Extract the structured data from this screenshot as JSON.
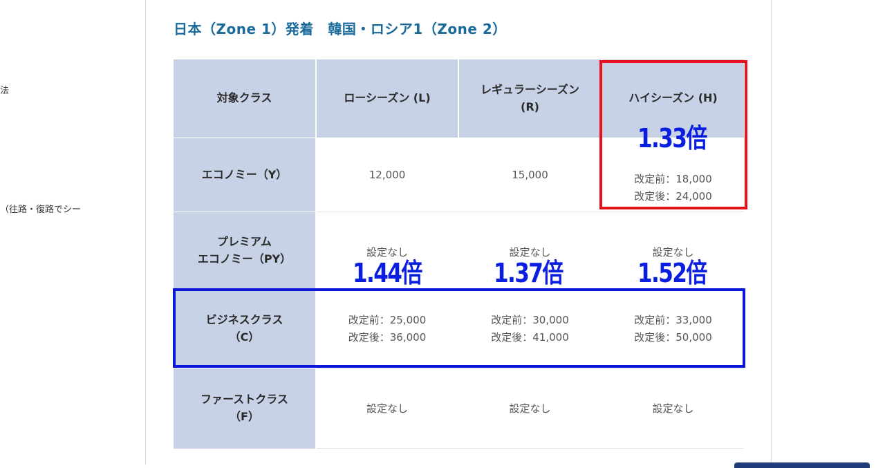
{
  "sidebar": {
    "fragments": [
      "法",
      "（往路・復路でシー"
    ]
  },
  "section": {
    "title": "日本（Zone 1）発着　韓国・ロシア1（Zone 2）"
  },
  "table": {
    "columns": [
      "対象クラス",
      "ローシーズン (L)",
      "レギュラーシーズン\n(R)",
      "ハイシーズン (H)"
    ],
    "rows": {
      "economy": {
        "label": "エコノミー（Y）",
        "low": "12,000",
        "regular": "15,000",
        "high": "改定前：18,000\n改定後：24,000"
      },
      "premium": {
        "label": "プレミアム\nエコノミー（PY）",
        "low": "設定なし",
        "regular": "設定なし",
        "high": "設定なし"
      },
      "business": {
        "label": "ビジネスクラス\n（C）",
        "low": "改定前：25,000\n改定後：36,000",
        "regular": "改定前：30,000\n改定後：41,000",
        "high": "改定前：33,000\n改定後：50,000"
      },
      "first": {
        "label": "ファーストクラス\n（F）",
        "low": "設定なし",
        "regular": "設定なし",
        "high": "設定なし"
      }
    }
  },
  "annotations": {
    "economy_high_ratio": "1.33倍",
    "business_low_ratio": "1.44倍",
    "business_regular_ratio": "1.37倍",
    "business_high_ratio": "1.52倍",
    "colors": {
      "red_box": "#e8121a",
      "blue_box": "#0a17d6",
      "ratio_text": "#0a1ee0"
    }
  }
}
